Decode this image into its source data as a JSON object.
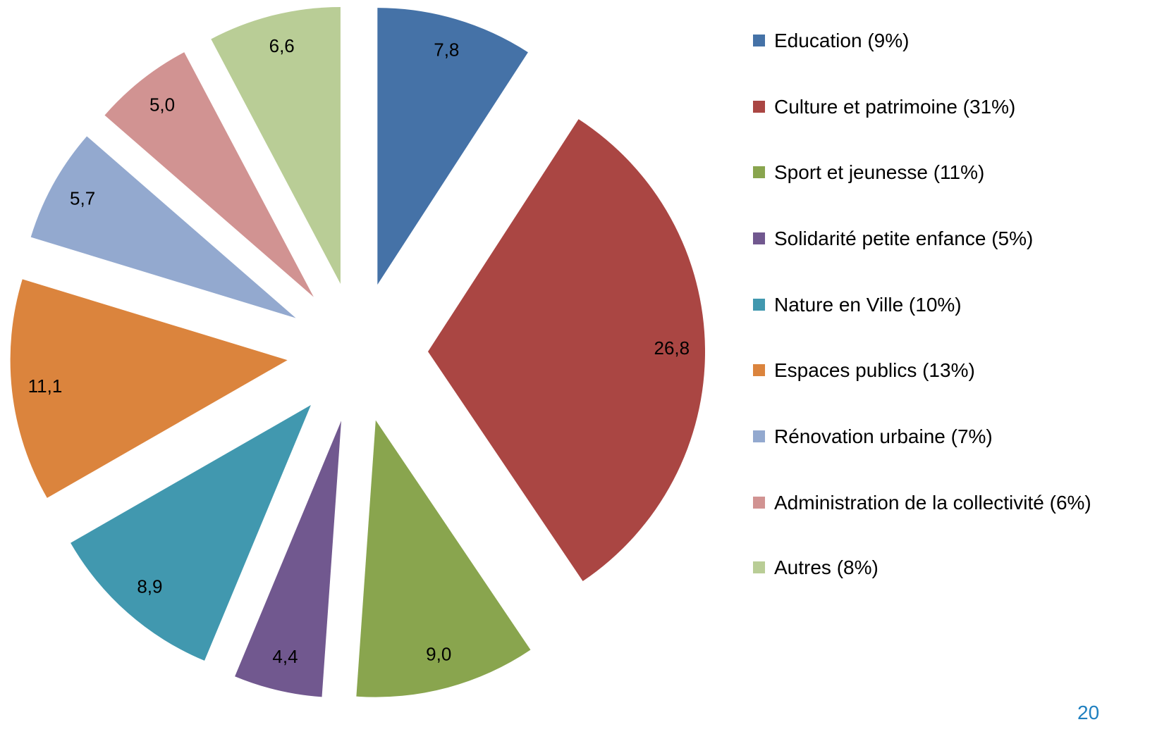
{
  "chart_data": {
    "type": "pie",
    "categories": [
      "Education (9%)",
      "Culture et patrimoine (31%)",
      "Sport et jeunesse (11%)",
      "Solidarité petite enfance (5%)",
      "Nature en Ville (10%)",
      "Espaces publics (13%)",
      "Rénovation urbaine (7%)",
      "Administration de la collectivité (6%)",
      "Autres (8%)"
    ],
    "values": [
      7.8,
      26.8,
      9.0,
      4.4,
      8.9,
      11.1,
      5.7,
      5.0,
      6.6
    ],
    "value_labels": [
      "7,8",
      "26,8",
      "9,0",
      "4,4",
      "8,9",
      "11,1",
      "5,7",
      "5,0",
      "6,6"
    ],
    "colors": [
      "#4572a7",
      "#aa4643",
      "#89a54e",
      "#71588f",
      "#4198af",
      "#db843d",
      "#93a9cf",
      "#d19392",
      "#b9cd96"
    ],
    "legend": "right"
  },
  "page_number": "20"
}
